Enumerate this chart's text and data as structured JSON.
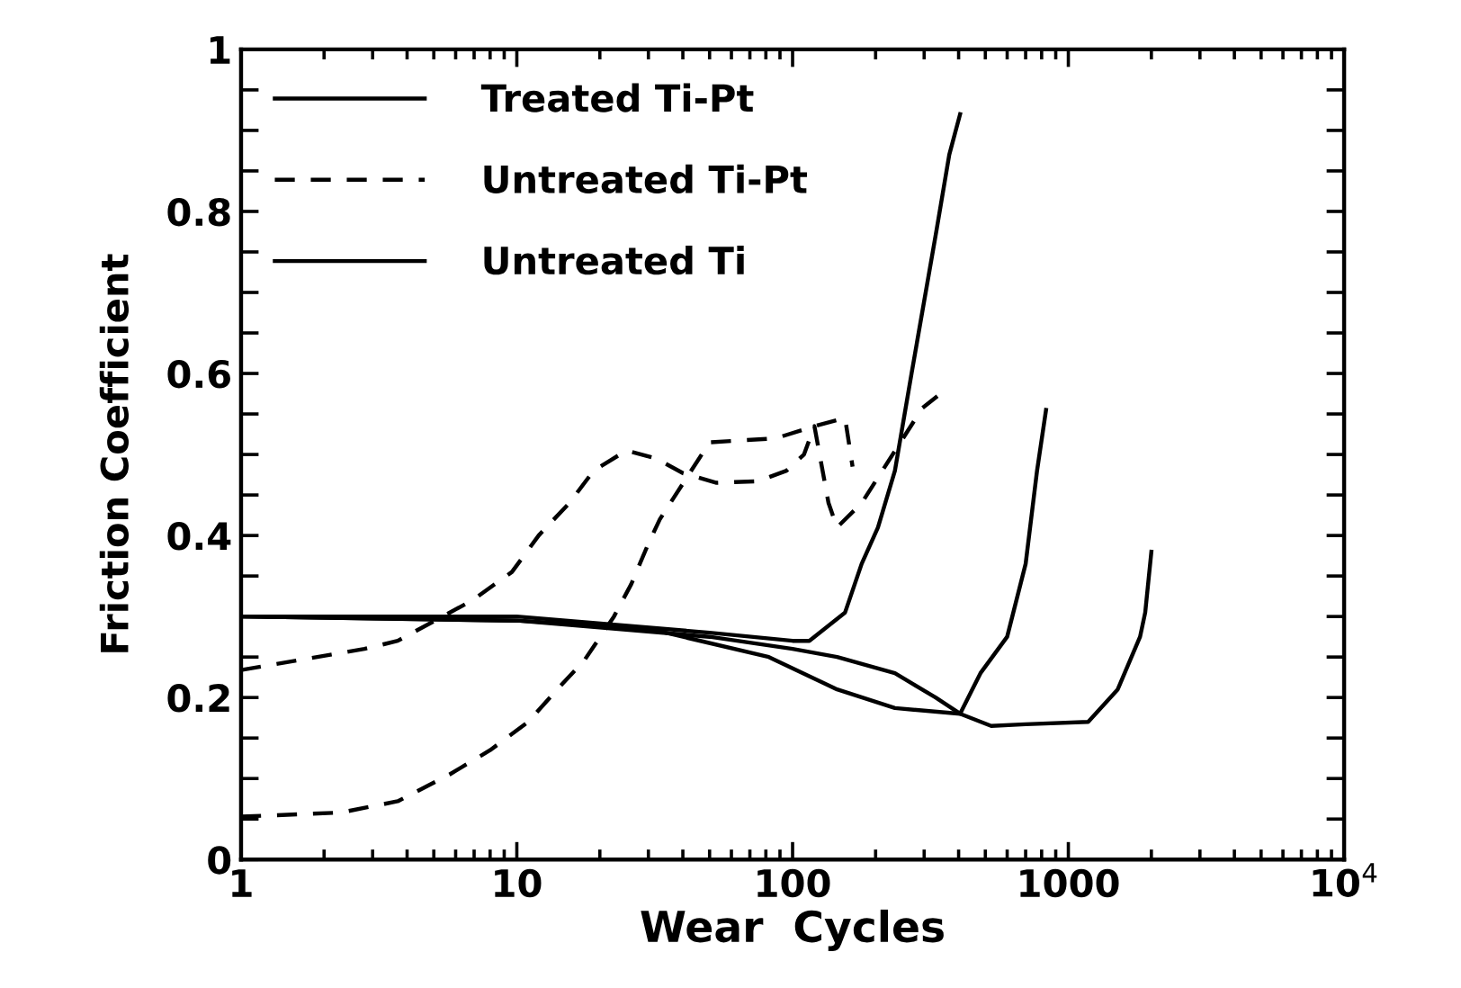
{
  "chart_data": {
    "type": "line",
    "xlabel": "Wear  Cycles",
    "ylabel": "Friction Coefficient",
    "log": "x",
    "xlim": [
      1,
      10000
    ],
    "xticks": [
      1,
      10,
      100,
      1000,
      {
        "value": 10000,
        "label": "10$^{4}$"
      }
    ],
    "ylim": [
      0,
      1
    ],
    "yticks": [
      0,
      {
        "value": 0.05,
        "label": null
      },
      {
        "value": 0.1,
        "label": null
      },
      {
        "value": 0.15,
        "label": null
      },
      0.2,
      {
        "value": 0.25,
        "label": null
      },
      {
        "value": 0.3,
        "label": null
      },
      {
        "value": 0.35,
        "label": null
      },
      0.4,
      {
        "value": 0.45,
        "label": null
      },
      {
        "value": 0.5,
        "label": null
      },
      {
        "value": 0.55,
        "label": null
      },
      0.6,
      {
        "value": 0.65,
        "label": null
      },
      {
        "value": 0.7,
        "label": null
      },
      {
        "value": 0.75,
        "label": null
      },
      0.8,
      {
        "value": 0.85,
        "label": null
      },
      {
        "value": 0.9,
        "label": null
      },
      {
        "value": 0.95,
        "label": null
      },
      1
    ],
    "grid": false,
    "legend": "top left",
    "marker": "none",
    "series": [
      {
        "name": "Treated Ti-Pt",
        "color": "#000000",
        "line_style": "solid",
        "x": [
          1,
          10,
          30,
          82,
          145,
          235,
          405,
          525,
          700,
          1180,
          1510,
          1820,
          1900,
          2000
        ],
        "values": [
          0.3,
          0.295,
          0.285,
          0.25,
          0.21,
          0.187,
          0.18,
          0.165,
          0.167,
          0.17,
          0.21,
          0.275,
          0.305,
          0.38
        ]
      },
      {
        "name": "Untreated Ti-Pt",
        "color": "#000000",
        "line_style": "dashed",
        "x": [
          1,
          2.8,
          3.7,
          6.9,
          9.6,
          12,
          15.5,
          19,
          25,
          32,
          40,
          53,
          75,
          95,
          110,
          120,
          135,
          145,
          178,
          295,
          335
        ],
        "values": [
          0.234,
          0.26,
          0.27,
          0.32,
          0.355,
          0.4,
          0.44,
          0.48,
          0.505,
          0.495,
          0.477,
          0.465,
          0.467,
          0.48,
          0.5,
          0.535,
          0.44,
          0.41,
          0.44,
          0.557,
          0.572
        ]
      },
      {
        "name": "Untreated Ti",
        "color": "#000000",
        "line_style": "solid",
        "x": [
          1,
          10,
          50,
          100,
          115,
          155,
          178,
          204,
          235,
          270,
          330,
          370,
          405
        ],
        "values": [
          0.3,
          0.3,
          0.28,
          0.27,
          0.27,
          0.305,
          0.365,
          0.41,
          0.48,
          0.6,
          0.77,
          0.87,
          0.92
        ]
      },
      {
        "color": "#000000",
        "line_style": "solid",
        "x": [
          1,
          10,
          50,
          100,
          145,
          235,
          330,
          405,
          480,
          600,
          700,
          770,
          830
        ],
        "values": [
          0.3,
          0.295,
          0.275,
          0.26,
          0.25,
          0.23,
          0.2,
          0.18,
          0.23,
          0.275,
          0.365,
          0.48,
          0.555
        ]
      },
      {
        "color": "#000000",
        "line_style": "dashed",
        "x": [
          1,
          2.3,
          3.7,
          5.7,
          8,
          11,
          14,
          17.5,
          22.5,
          26,
          30,
          33,
          50,
          87,
          120,
          155,
          165
        ],
        "values": [
          0.053,
          0.058,
          0.072,
          0.105,
          0.135,
          0.17,
          0.21,
          0.245,
          0.3,
          0.34,
          0.39,
          0.42,
          0.515,
          0.52,
          0.535,
          0.545,
          0.485
        ]
      }
    ]
  }
}
